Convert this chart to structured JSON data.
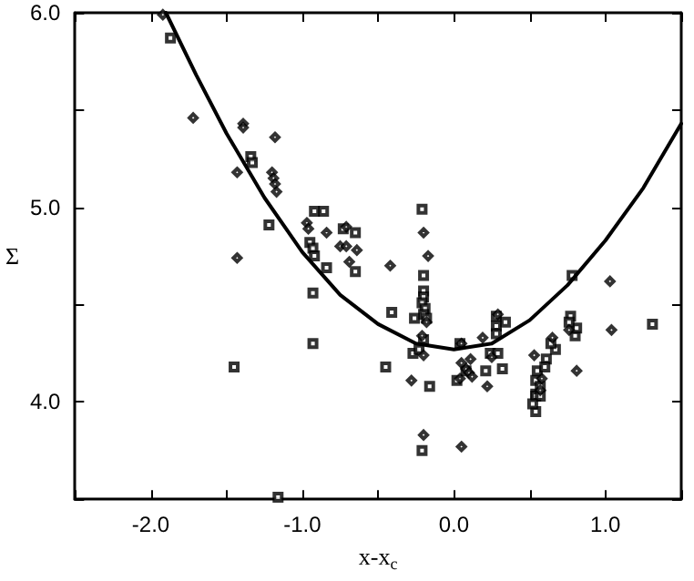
{
  "chart_data": {
    "type": "scatter",
    "xlabel": "x-x$_{c}$",
    "ylabel": "Σ",
    "grid": false,
    "xlim": [
      -2.5,
      1.5
    ],
    "xticks": [
      {
        "value": -2.5,
        "label": null
      },
      {
        "value": -2.0,
        "label": "-2.0"
      },
      {
        "value": -1.5,
        "label": null
      },
      {
        "value": -1.0,
        "label": "-1.0"
      },
      {
        "value": -0.5,
        "label": null
      },
      {
        "value": 0.0,
        "label": "0.0"
      },
      {
        "value": 0.5,
        "label": null
      },
      {
        "value": 1.0,
        "label": "1.0"
      },
      {
        "value": 1.5,
        "label": null
      }
    ],
    "ylim": [
      3.5,
      6.0
    ],
    "yticks": [
      {
        "value": 3.5,
        "label": null
      },
      {
        "value": 4.0,
        "label": "4.0"
      },
      {
        "value": 4.5,
        "label": null
      },
      {
        "value": 5.0,
        "label": "5.0"
      },
      {
        "value": 5.5,
        "label": null
      },
      {
        "value": 6.0,
        "label": "6.0"
      }
    ],
    "series": [
      {
        "marker": "square",
        "color": "#000000",
        "x": [
          -1.87,
          -1.34,
          -1.33,
          -1.22,
          -0.92,
          -0.86,
          -0.95,
          -0.93,
          -0.92,
          -0.84,
          -0.73,
          -0.65,
          -0.65,
          -0.21,
          -0.2,
          -0.2,
          -0.2,
          -0.21,
          -0.19,
          -0.2,
          -0.18,
          -0.26,
          -0.41,
          -0.2,
          -0.27,
          -0.23,
          -0.45,
          -0.16,
          -0.21,
          0.04,
          0.08,
          0.02,
          0.21,
          0.32,
          0.28,
          0.34,
          0.28,
          0.28,
          0.24,
          0.29,
          0.61,
          0.55,
          0.6,
          0.67,
          0.64,
          0.54,
          0.57,
          0.54,
          0.54,
          0.57,
          0.54,
          0.52,
          0.78,
          0.77,
          0.8,
          0.81,
          0.76,
          1.31,
          -0.93,
          -0.93,
          -1.45,
          -1.16
        ],
        "values": [
          5.87,
          5.26,
          5.23,
          4.91,
          4.98,
          4.98,
          4.82,
          4.79,
          4.75,
          4.69,
          4.89,
          4.87,
          4.67,
          4.99,
          4.65,
          4.57,
          4.54,
          4.51,
          4.48,
          4.45,
          4.43,
          4.43,
          4.46,
          4.32,
          4.25,
          4.27,
          4.18,
          4.08,
          3.75,
          4.3,
          4.16,
          4.11,
          4.16,
          4.17,
          4.44,
          4.41,
          4.39,
          4.35,
          4.25,
          4.25,
          4.22,
          4.16,
          4.18,
          4.27,
          4.3,
          4.11,
          4.08,
          4.04,
          4.03,
          4.03,
          3.95,
          3.99,
          4.65,
          4.44,
          4.34,
          4.38,
          4.41,
          4.4,
          4.56,
          4.3,
          4.18,
          3.51
        ]
      },
      {
        "marker": "diamond",
        "color": "#000000",
        "x": [
          -1.92,
          -1.72,
          -1.39,
          -1.39,
          -1.18,
          -1.43,
          -1.2,
          -1.19,
          -1.18,
          -1.17,
          -1.43,
          -0.97,
          -0.96,
          -0.84,
          -0.71,
          -0.75,
          -0.71,
          -0.64,
          -0.69,
          -0.42,
          -0.2,
          -0.17,
          -0.18,
          -0.21,
          -0.2,
          -0.28,
          -0.2,
          0.05,
          0.05,
          0.08,
          0.1,
          0.12,
          0.11,
          0.04,
          0.05,
          0.22,
          0.19,
          0.29,
          0.25,
          0.53,
          0.58,
          0.57,
          0.65,
          0.76,
          0.81,
          1.03,
          1.04
        ],
        "values": [
          5.99,
          5.46,
          5.43,
          5.41,
          5.36,
          5.18,
          5.18,
          5.15,
          5.12,
          5.08,
          4.74,
          4.92,
          4.89,
          4.87,
          4.9,
          4.8,
          4.8,
          4.78,
          4.72,
          4.7,
          4.87,
          4.75,
          4.41,
          4.34,
          4.24,
          4.11,
          3.83,
          4.3,
          4.2,
          4.17,
          4.15,
          4.13,
          4.22,
          4.12,
          3.77,
          4.08,
          4.33,
          4.45,
          4.23,
          4.24,
          4.12,
          4.06,
          4.33,
          4.37,
          4.16,
          4.62,
          4.37
        ]
      },
      {
        "type": "line",
        "marker": "none",
        "line_style": "solid",
        "color": "#000000",
        "x": [
          -1.9,
          -1.7,
          -1.5,
          -1.25,
          -1.0,
          -0.75,
          -0.5,
          -0.25,
          0.0,
          0.25,
          0.5,
          0.75,
          1.0,
          1.25,
          1.5
        ],
        "values": [
          6.0,
          5.68,
          5.38,
          5.05,
          4.77,
          4.55,
          4.4,
          4.3,
          4.27,
          4.3,
          4.42,
          4.6,
          4.83,
          5.1,
          5.43
        ]
      }
    ]
  }
}
